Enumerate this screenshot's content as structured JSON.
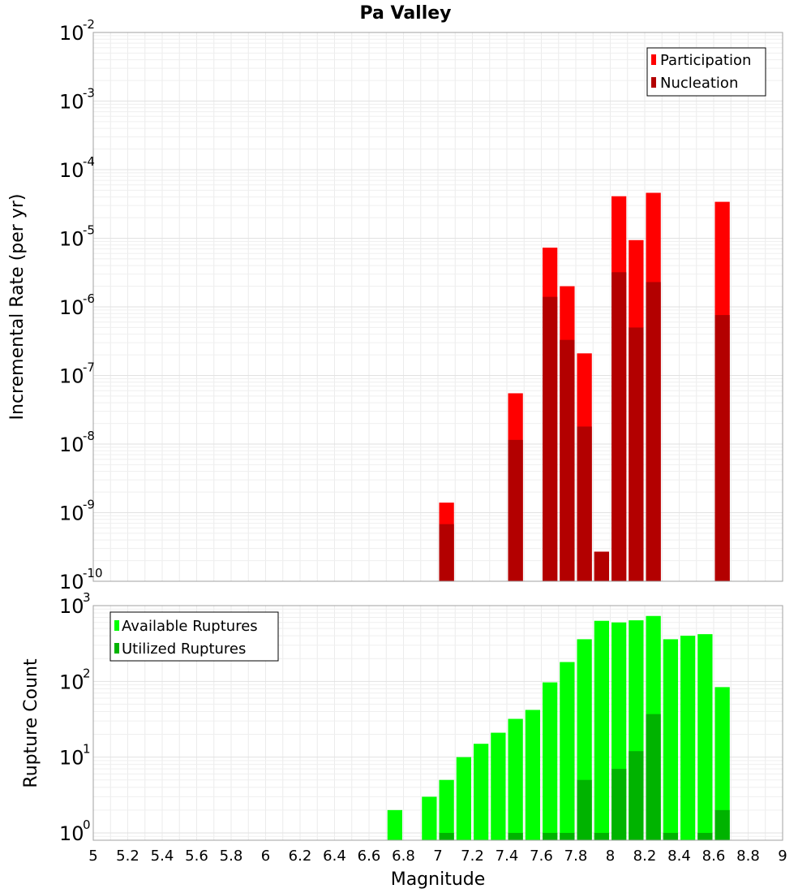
{
  "title": "Pa Valley",
  "chart_data": [
    {
      "type": "bar",
      "name": "rates",
      "title": "Pa Valley",
      "xlabel": "Magnitude",
      "ylabel": "Incremental Rate (per yr)",
      "yscale": "log",
      "xlim": [
        5,
        9
      ],
      "ylim": [
        1e-10,
        0.01
      ],
      "yticks": [
        {
          "base": "10",
          "exp": "-10"
        },
        {
          "base": "10",
          "exp": "-9"
        },
        {
          "base": "10",
          "exp": "-8"
        },
        {
          "base": "10",
          "exp": "-7"
        },
        {
          "base": "10",
          "exp": "-6"
        },
        {
          "base": "10",
          "exp": "-5"
        },
        {
          "base": "10",
          "exp": "-4"
        },
        {
          "base": "10",
          "exp": "-3"
        },
        {
          "base": "10",
          "exp": "-2"
        }
      ],
      "grid": true,
      "legend_position": "top-right",
      "series": [
        {
          "name": "Participation",
          "color": "#ff0000",
          "points": [
            {
              "x": 7.05,
              "y": 1.4e-09
            },
            {
              "x": 7.45,
              "y": 5.5e-08
            },
            {
              "x": 7.65,
              "y": 7.3e-06
            },
            {
              "x": 7.75,
              "y": 2e-06
            },
            {
              "x": 7.85,
              "y": 2.1e-07
            },
            {
              "x": 7.95,
              "y": 2.7e-10
            },
            {
              "x": 8.05,
              "y": 4.1e-05
            },
            {
              "x": 8.15,
              "y": 9.4e-06
            },
            {
              "x": 8.25,
              "y": 4.6e-05
            },
            {
              "x": 8.65,
              "y": 3.4e-05
            }
          ]
        },
        {
          "name": "Nucleation",
          "color": "#b30000",
          "points": [
            {
              "x": 7.05,
              "y": 6.8e-10
            },
            {
              "x": 7.45,
              "y": 1.15e-08
            },
            {
              "x": 7.65,
              "y": 1.4e-06
            },
            {
              "x": 7.75,
              "y": 3.3e-07
            },
            {
              "x": 7.85,
              "y": 1.8e-08
            },
            {
              "x": 7.95,
              "y": 2.7e-10
            },
            {
              "x": 8.05,
              "y": 3.2e-06
            },
            {
              "x": 8.15,
              "y": 5e-07
            },
            {
              "x": 8.25,
              "y": 2.3e-06
            },
            {
              "x": 8.65,
              "y": 7.6e-07
            }
          ]
        }
      ]
    },
    {
      "type": "bar",
      "name": "counts",
      "xlabel": "Magnitude",
      "ylabel": "Rupture Count",
      "yscale": "log",
      "xlim": [
        5,
        9
      ],
      "ylim": [
        0.8,
        1000
      ],
      "xticks": [
        "5",
        "5.2",
        "5.4",
        "5.6",
        "5.8",
        "6",
        "6.2",
        "6.4",
        "6.6",
        "6.8",
        "7",
        "7.2",
        "7.4",
        "7.6",
        "7.8",
        "8",
        "8.2",
        "8.4",
        "8.6",
        "8.8",
        "9"
      ],
      "yticks": [
        {
          "base": "10",
          "exp": "0"
        },
        {
          "base": "10",
          "exp": "1"
        },
        {
          "base": "10",
          "exp": "2"
        },
        {
          "base": "10",
          "exp": "3"
        }
      ],
      "grid": true,
      "legend_position": "top-left",
      "series": [
        {
          "name": "Available Ruptures",
          "color": "#00ff00",
          "points": [
            {
              "x": 6.75,
              "y": 2
            },
            {
              "x": 6.95,
              "y": 3
            },
            {
              "x": 7.05,
              "y": 5
            },
            {
              "x": 7.15,
              "y": 10
            },
            {
              "x": 7.25,
              "y": 15
            },
            {
              "x": 7.35,
              "y": 21
            },
            {
              "x": 7.45,
              "y": 32
            },
            {
              "x": 7.55,
              "y": 42
            },
            {
              "x": 7.65,
              "y": 97
            },
            {
              "x": 7.75,
              "y": 180
            },
            {
              "x": 7.85,
              "y": 360
            },
            {
              "x": 7.95,
              "y": 630
            },
            {
              "x": 8.05,
              "y": 600
            },
            {
              "x": 8.15,
              "y": 640
            },
            {
              "x": 8.25,
              "y": 730
            },
            {
              "x": 8.35,
              "y": 360
            },
            {
              "x": 8.45,
              "y": 400
            },
            {
              "x": 8.55,
              "y": 420
            },
            {
              "x": 8.65,
              "y": 84
            }
          ]
        },
        {
          "name": "Utilized Ruptures",
          "color": "#00b300",
          "points": [
            {
              "x": 7.05,
              "y": 1
            },
            {
              "x": 7.45,
              "y": 1
            },
            {
              "x": 7.65,
              "y": 1
            },
            {
              "x": 7.75,
              "y": 1
            },
            {
              "x": 7.85,
              "y": 5
            },
            {
              "x": 7.95,
              "y": 1
            },
            {
              "x": 8.05,
              "y": 7
            },
            {
              "x": 8.15,
              "y": 12
            },
            {
              "x": 8.25,
              "y": 37
            },
            {
              "x": 8.35,
              "y": 1
            },
            {
              "x": 8.55,
              "y": 1
            },
            {
              "x": 8.65,
              "y": 2
            }
          ]
        }
      ]
    }
  ]
}
